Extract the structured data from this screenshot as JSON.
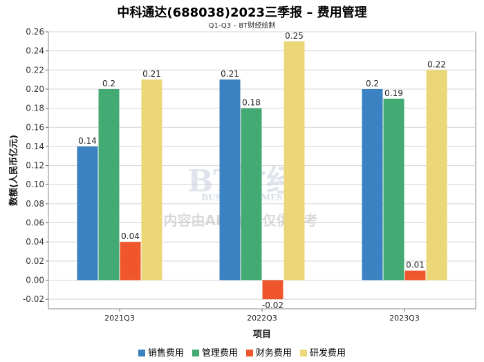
{
  "chart_data": {
    "type": "bar",
    "title": "中科通达(688038)2023三季报 – 费用管理",
    "subtitle": "Q1-Q3 – BT财经绘制",
    "xlabel": "项目",
    "ylabel": "数额(人民币亿元)",
    "categories": [
      "2021Q3",
      "2022Q3",
      "2023Q3"
    ],
    "series": [
      {
        "name": "销售费用",
        "color": "#3a82c1",
        "values": [
          0.14,
          0.21,
          0.2
        ]
      },
      {
        "name": "管理费用",
        "color": "#43aa73",
        "values": [
          0.2,
          0.18,
          0.19
        ]
      },
      {
        "name": "财务费用",
        "color": "#f0562c",
        "values": [
          0.04,
          -0.02,
          0.01
        ]
      },
      {
        "name": "研发费用",
        "color": "#ecd778",
        "values": [
          0.21,
          0.25,
          0.22
        ]
      }
    ],
    "ylim": [
      -0.03,
      0.26
    ],
    "yticks": [
      "-0.02",
      "0.00",
      "0.02",
      "0.04",
      "0.06",
      "0.08",
      "0.10",
      "0.12",
      "0.14",
      "0.16",
      "0.18",
      "0.20",
      "0.22",
      "0.24",
      "0.26"
    ],
    "grid": true,
    "legend_position": "bottom"
  },
  "watermark": {
    "logo": "BT财经",
    "logo_sub": "BUSINESSTIMES",
    "notice": "内容由AI生成，仅供参考"
  }
}
